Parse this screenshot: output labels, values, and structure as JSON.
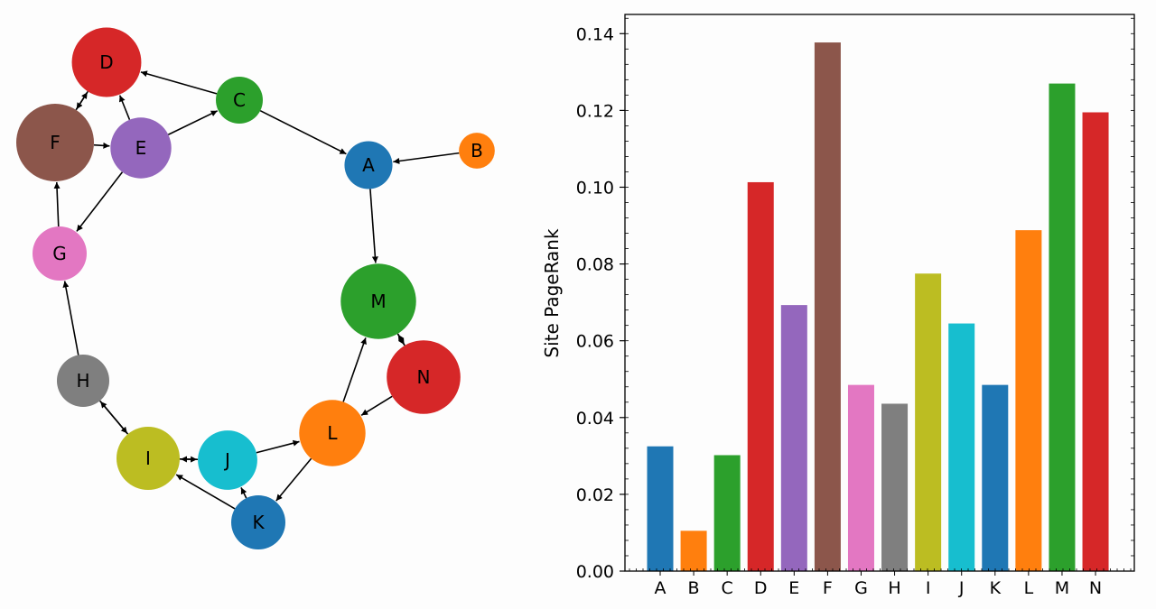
{
  "graph": {
    "nodes": [
      {
        "id": "A",
        "color": "#1f77b4"
      },
      {
        "id": "B",
        "color": "#ff7f0e"
      },
      {
        "id": "C",
        "color": "#2ca02c"
      },
      {
        "id": "D",
        "color": "#d62728"
      },
      {
        "id": "E",
        "color": "#9467bd"
      },
      {
        "id": "F",
        "color": "#8c564b"
      },
      {
        "id": "G",
        "color": "#e377c2"
      },
      {
        "id": "H",
        "color": "#7f7f7f"
      },
      {
        "id": "I",
        "color": "#bcbd22"
      },
      {
        "id": "J",
        "color": "#17becf"
      },
      {
        "id": "K",
        "color": "#1f77b4"
      },
      {
        "id": "L",
        "color": "#ff7f0e"
      },
      {
        "id": "M",
        "color": "#2ca02c"
      },
      {
        "id": "N",
        "color": "#d62728"
      }
    ],
    "edges": [
      {
        "from": "B",
        "to": "A"
      },
      {
        "from": "C",
        "to": "A"
      },
      {
        "from": "C",
        "to": "D"
      },
      {
        "from": "E",
        "to": "C"
      },
      {
        "from": "E",
        "to": "D"
      },
      {
        "from": "E",
        "to": "G"
      },
      {
        "from": "F",
        "to": "E"
      },
      {
        "from": "F",
        "to": "D"
      },
      {
        "from": "D",
        "to": "F"
      },
      {
        "from": "G",
        "to": "F"
      },
      {
        "from": "H",
        "to": "G"
      },
      {
        "from": "H",
        "to": "I"
      },
      {
        "from": "I",
        "to": "H"
      },
      {
        "from": "I",
        "to": "J"
      },
      {
        "from": "J",
        "to": "I"
      },
      {
        "from": "J",
        "to": "L"
      },
      {
        "from": "K",
        "to": "J"
      },
      {
        "from": "K",
        "to": "I"
      },
      {
        "from": "L",
        "to": "K"
      },
      {
        "from": "L",
        "to": "M"
      },
      {
        "from": "M",
        "to": "N"
      },
      {
        "from": "N",
        "to": "M"
      },
      {
        "from": "N",
        "to": "L"
      },
      {
        "from": "A",
        "to": "M"
      }
    ]
  },
  "chart_data": {
    "type": "bar",
    "title": "",
    "xlabel": "",
    "ylabel": "Site PageRank",
    "categories": [
      "A",
      "B",
      "C",
      "D",
      "E",
      "F",
      "G",
      "H",
      "I",
      "J",
      "K",
      "L",
      "M",
      "N"
    ],
    "values": [
      0.0325,
      0.0105,
      0.0302,
      0.1013,
      0.0693,
      0.1377,
      0.0485,
      0.0436,
      0.0775,
      0.0645,
      0.0485,
      0.0888,
      0.127,
      0.1195
    ],
    "colors": [
      "#1f77b4",
      "#ff7f0e",
      "#2ca02c",
      "#d62728",
      "#9467bd",
      "#8c564b",
      "#e377c2",
      "#7f7f7f",
      "#bcbd22",
      "#17becf",
      "#1f77b4",
      "#ff7f0e",
      "#2ca02c",
      "#d62728"
    ],
    "ylim": [
      0,
      0.145
    ],
    "yticks": [
      "0.00",
      "0.02",
      "0.04",
      "0.06",
      "0.08",
      "0.10",
      "0.12",
      "0.14"
    ],
    "grid": false,
    "legend": "none"
  }
}
